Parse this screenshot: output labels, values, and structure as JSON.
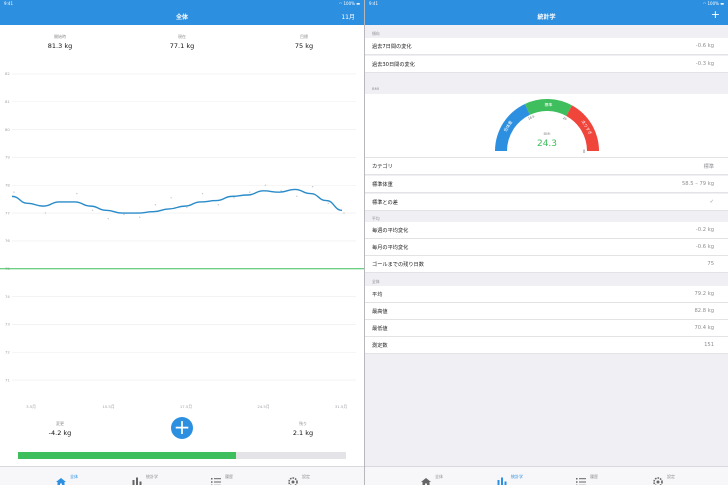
{
  "left": {
    "status": {
      "time": "9:41",
      "battery": "100%"
    },
    "nav": {
      "title": "全体",
      "right_button": "11月"
    },
    "summary": [
      {
        "label": "開始時",
        "value": "81.3 kg"
      },
      {
        "label": "現在",
        "value": "77.1 kg"
      },
      {
        "label": "目標",
        "value": "75 kg"
      }
    ],
    "bottom_stats": {
      "change": {
        "label": "変更",
        "value": "-4.2 kg"
      },
      "remaining": {
        "label": "残り",
        "value": "2.1 kg"
      }
    },
    "fab": {
      "symbol": "+"
    },
    "progress": {
      "fraction": 0.665,
      "color": "#3ebe5c"
    }
  },
  "chart_data": {
    "type": "line",
    "y_ticks": [
      82,
      81,
      80,
      79,
      78,
      77,
      76,
      75,
      74,
      73,
      72,
      71
    ],
    "ylim": [
      70.5,
      82.5
    ],
    "x_ticks": [
      "3.5月",
      "10.5月",
      "17.5月",
      "24.5月",
      "31.5月"
    ],
    "goal": 75,
    "goal_color": "#3ebe5c",
    "line_color": "#2a8bc9",
    "trend": [
      77.6,
      77.35,
      77.25,
      77.4,
      77.4,
      77.25,
      77.1,
      77.0,
      77.0,
      77.05,
      77.15,
      77.25,
      77.4,
      77.45,
      77.6,
      77.65,
      77.8,
      77.75,
      77.85,
      77.7,
      77.45,
      77.1
    ],
    "points": [
      77.75,
      77.35,
      77.0,
      77.4,
      77.7,
      77.1,
      76.8,
      76.95,
      76.85,
      77.3,
      77.55,
      77.2,
      77.7,
      77.3,
      77.55,
      77.75,
      78.0,
      77.8,
      77.6,
      77.95,
      77.35,
      77.0
    ]
  },
  "right": {
    "status": {
      "time": "9:41",
      "battery": "100%"
    },
    "nav": {
      "title": "統計学",
      "plus": "+"
    },
    "change_header": "傾向",
    "change_rows": [
      {
        "label": "過去7日間の変化",
        "value": "-0.6 kg"
      },
      {
        "label": "過去30日間の変化",
        "value": "-0.3 kg"
      }
    ],
    "bmi": {
      "header": "BMI",
      "label": "BMI",
      "value": "24.3",
      "segments": [
        {
          "label": "低体重",
          "color": "#2d8fe0"
        },
        {
          "label": "標準",
          "color": "#3ebe5c"
        },
        {
          "label": "太りすぎ",
          "color": "#f0453a"
        }
      ],
      "tick_labels": [
        "18.5",
        "25",
        "30"
      ],
      "value_color": "#3ebe5c"
    },
    "bmi_rows": [
      {
        "label": "カテゴリ",
        "value": "標準"
      },
      {
        "label": "標準体重",
        "value": "58.5 – 79 kg"
      },
      {
        "label": "標準との差",
        "value": "✓"
      }
    ],
    "avg_header": "平均",
    "avg_rows": [
      {
        "label": "毎週の平均変化",
        "value": "-0.2 kg"
      },
      {
        "label": "毎月の平均変化",
        "value": "-0.6 kg"
      },
      {
        "label": "ゴールまでの残り日数",
        "value": "75"
      }
    ],
    "total_header": "全体",
    "total_rows": [
      {
        "label": "平均",
        "value": "79.2 kg"
      },
      {
        "label": "最高値",
        "value": "82.8 kg"
      },
      {
        "label": "最低値",
        "value": "70.4 kg"
      },
      {
        "label": "測定数",
        "value": "151"
      }
    ]
  },
  "tabs": [
    {
      "label": "全体",
      "icon": "home-icon"
    },
    {
      "label": "統計学",
      "icon": "bar-chart-icon"
    },
    {
      "label": "履歴",
      "icon": "list-icon"
    },
    {
      "label": "設定",
      "icon": "gear-icon"
    }
  ],
  "accent_color": "#2d8fe0"
}
